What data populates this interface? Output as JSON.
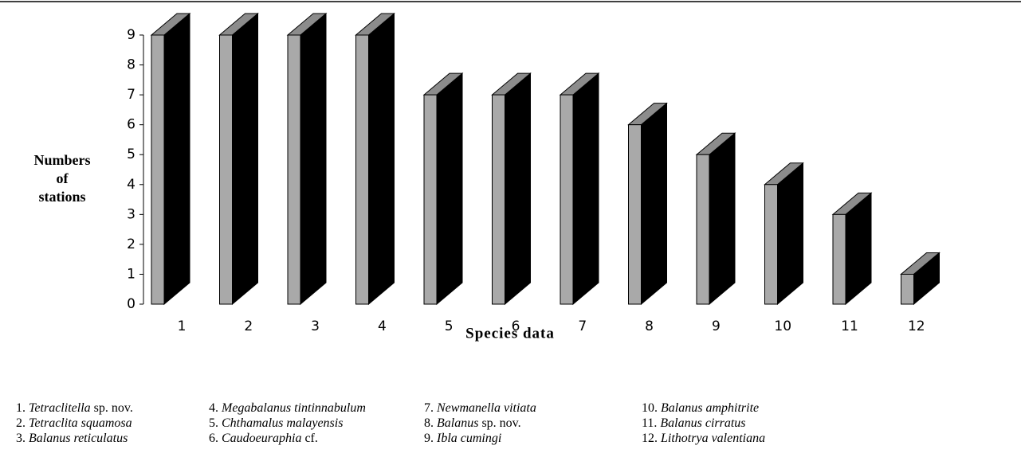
{
  "chart_data": {
    "type": "bar3d",
    "ylabel": [
      "Numbers",
      "of",
      "stations"
    ],
    "xlabel": "Species data",
    "categories": [
      "1",
      "2",
      "3",
      "4",
      "5",
      "6",
      "7",
      "8",
      "9",
      "10",
      "11",
      "12"
    ],
    "values": [
      9,
      9,
      9,
      9,
      7,
      7,
      7,
      6,
      5,
      4,
      3,
      1
    ],
    "colors": {
      "front": "#a9a9a9",
      "top": "#8c8c8c",
      "side": "#000000"
    },
    "ylim": [
      0,
      9
    ],
    "yticks": [
      0,
      1,
      2,
      3,
      4,
      5,
      6,
      7,
      8,
      9
    ],
    "legend": [
      {
        "number": "1.",
        "italic": "Tetraclitella",
        "rest": "sp. nov."
      },
      {
        "number": "2.",
        "italic": "Tetraclita squamosa",
        "rest": ""
      },
      {
        "number": "3.",
        "italic": "Balanus reticulatus",
        "rest": ""
      },
      {
        "number": "4.",
        "italic": "Megabalanus tintinnabulum",
        "rest": ""
      },
      {
        "number": "5.",
        "italic": "Chthamalus malayensis",
        "rest": ""
      },
      {
        "number": "6.",
        "italic": "Caudoeuraphia",
        "rest": "cf."
      },
      {
        "number": "7.",
        "italic": "Newmanella vitiata",
        "rest": ""
      },
      {
        "number": "8.",
        "italic": "Balanus",
        "rest": "sp. nov."
      },
      {
        "number": "9.",
        "italic": "Ibla cumingi",
        "rest": ""
      },
      {
        "number": "10.",
        "italic": "Balanus amphitrite",
        "rest": ""
      },
      {
        "number": "11.",
        "italic": "Balanus cirratus",
        "rest": ""
      },
      {
        "number": "12.",
        "italic": "Lithotrya valentiana",
        "rest": ""
      }
    ]
  }
}
